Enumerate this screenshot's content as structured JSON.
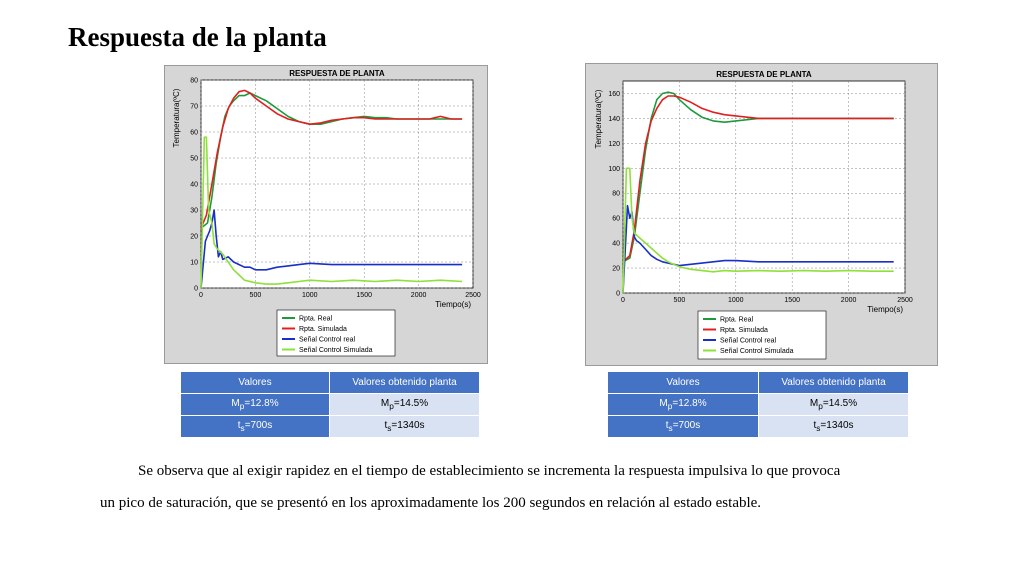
{
  "slide_title": "Respuesta de la planta",
  "chart_data": [
    {
      "type": "line",
      "title": "RESPUESTA DE PLANTA",
      "xlabel": "Tiempo(s)",
      "ylabel": "Temperatura(ºC)",
      "xlim": [
        0,
        2500
      ],
      "ylim": [
        0,
        80
      ],
      "xticks": [
        "0",
        "500",
        "1000",
        "1500",
        "2000",
        "2500"
      ],
      "yticks": [
        "0",
        "10",
        "20",
        "30",
        "40",
        "50",
        "60",
        "70",
        "80"
      ],
      "grid": true,
      "legend": "bottom-left",
      "series": [
        {
          "name": "Rpta. Real",
          "color": "#1e9a3c",
          "x": [
            0,
            60,
            100,
            140,
            180,
            220,
            260,
            300,
            350,
            400,
            450,
            500,
            600,
            700,
            800,
            900,
            1000,
            1100,
            1200,
            1300,
            1400,
            1500,
            1600,
            1700,
            1800,
            1900,
            2000,
            2100,
            2200,
            2300,
            2400
          ],
          "y": [
            23,
            25,
            35,
            48,
            58,
            66,
            70,
            72,
            74,
            74,
            75,
            74,
            72,
            69,
            66,
            64,
            63,
            63,
            64,
            65,
            65.5,
            66,
            65.5,
            65.5,
            65,
            65,
            65,
            65,
            65,
            65,
            65
          ]
        },
        {
          "name": "Rpta. Simulada",
          "color": "#e02020",
          "x": [
            0,
            50,
            100,
            150,
            200,
            250,
            300,
            350,
            400,
            450,
            500,
            600,
            700,
            800,
            900,
            1000,
            1100,
            1200,
            1300,
            1400,
            1500,
            1600,
            1700,
            1800,
            1900,
            2000,
            2100,
            2200,
            2300,
            2400
          ],
          "y": [
            23,
            28,
            40,
            52,
            62,
            69,
            73,
            75.5,
            76,
            75,
            73,
            70,
            67,
            65,
            64,
            63,
            63.5,
            64.5,
            65,
            65.5,
            65.5,
            65,
            65,
            65,
            65,
            65,
            65,
            66,
            65,
            65
          ]
        },
        {
          "name": "Señal Control real",
          "color": "#1a2fc8",
          "x": [
            0,
            40,
            60,
            80,
            100,
            120,
            140,
            160,
            180,
            200,
            250,
            300,
            350,
            400,
            450,
            500,
            600,
            700,
            800,
            900,
            1000,
            1200,
            1400,
            1600,
            1800,
            2000,
            2200,
            2400
          ],
          "y": [
            0,
            18,
            20,
            22,
            25,
            30,
            20,
            12,
            14,
            11,
            12,
            10,
            9,
            8,
            8,
            7,
            7,
            8,
            8.5,
            9,
            9.5,
            9,
            9,
            9,
            9,
            9,
            9,
            9
          ]
        },
        {
          "name": "Señal Control Simulada",
          "color": "#8ee03a",
          "x": [
            0,
            30,
            50,
            70,
            100,
            120,
            150,
            200,
            250,
            300,
            350,
            400,
            500,
            600,
            700,
            800,
            900,
            1000,
            1200,
            1400,
            1600,
            1800,
            2000,
            2200,
            2400
          ],
          "y": [
            0,
            58,
            58,
            30,
            25,
            17,
            15,
            13,
            10,
            7,
            5,
            3,
            2,
            1.5,
            1.5,
            2,
            2.5,
            3,
            2.5,
            3,
            2.5,
            3,
            2.5,
            3,
            2.5
          ]
        }
      ]
    },
    {
      "type": "line",
      "title": "RESPUESTA DE PLANTA",
      "xlabel": "Tiempo(s)",
      "ylabel": "Temperatura(ºC)",
      "xlim": [
        0,
        2500
      ],
      "ylim": [
        0,
        170
      ],
      "xticks": [
        "0",
        "500",
        "1000",
        "1500",
        "2000",
        "2500"
      ],
      "yticks": [
        "0",
        "20",
        "40",
        "60",
        "80",
        "100",
        "120",
        "140",
        "160"
      ],
      "grid": true,
      "legend": "bottom-left",
      "series": [
        {
          "name": "Rpta. Real",
          "color": "#1e9a3c",
          "x": [
            0,
            60,
            100,
            150,
            200,
            250,
            300,
            350,
            400,
            450,
            500,
            600,
            700,
            800,
            900,
            1000,
            1100,
            1200,
            1300,
            1400,
            1500,
            1600,
            1700,
            1800,
            1900,
            2000,
            2100,
            2200,
            2300,
            2400
          ],
          "y": [
            25,
            28,
            45,
            80,
            115,
            140,
            155,
            160,
            161,
            160,
            155,
            147,
            141,
            138,
            137,
            138,
            139,
            140,
            140,
            140,
            140,
            140,
            140,
            140,
            140,
            140,
            140,
            140,
            140,
            140
          ]
        },
        {
          "name": "Rpta. Simulada",
          "color": "#e02020",
          "x": [
            0,
            60,
            100,
            150,
            200,
            250,
            300,
            350,
            400,
            450,
            500,
            600,
            700,
            800,
            900,
            1000,
            1100,
            1200,
            1300,
            1400,
            1500,
            1600,
            1700,
            1800,
            1900,
            2000,
            2100,
            2200,
            2300,
            2400
          ],
          "y": [
            25,
            30,
            50,
            90,
            120,
            138,
            148,
            155,
            158,
            158,
            157,
            153,
            148,
            145,
            143,
            142,
            141,
            140,
            140,
            140,
            140,
            140,
            140,
            140,
            140,
            140,
            140,
            140,
            140,
            140
          ]
        },
        {
          "name": "Señal Control real",
          "color": "#1a2fc8",
          "x": [
            0,
            40,
            60,
            80,
            100,
            120,
            150,
            200,
            250,
            300,
            350,
            400,
            450,
            500,
            600,
            700,
            800,
            900,
            1000,
            1200,
            1400,
            1600,
            1800,
            2000,
            2200,
            2400
          ],
          "y": [
            0,
            70,
            60,
            65,
            45,
            42,
            40,
            35,
            30,
            27,
            25,
            24,
            23,
            22,
            23,
            24,
            25,
            26,
            26,
            25,
            25,
            25,
            25,
            25,
            25,
            25
          ]
        },
        {
          "name": "Señal Control Simulada",
          "color": "#8ee03a",
          "x": [
            0,
            30,
            60,
            80,
            100,
            150,
            200,
            250,
            300,
            350,
            400,
            500,
            600,
            700,
            800,
            900,
            1000,
            1200,
            1400,
            1600,
            1800,
            2000,
            2200,
            2400
          ],
          "y": [
            0,
            100,
            100,
            60,
            48,
            44,
            40,
            36,
            32,
            28,
            25,
            21,
            19,
            18,
            17,
            18,
            17.5,
            18,
            17.5,
            18,
            17.5,
            18,
            17.5,
            17.5
          ]
        }
      ]
    }
  ],
  "tables": [
    {
      "header": [
        "Valores",
        "Valores obtenido planta"
      ],
      "rows": [
        {
          "a_main": "M",
          "a_sub": "p",
          "a_rest": "=12.8%",
          "b_main": "M",
          "b_sub": "p",
          "b_rest": "=14.5%"
        },
        {
          "a_main": "t",
          "a_sub": "s",
          "a_rest": "=700s",
          "b_main": "t",
          "b_sub": "s",
          "b_rest": "=1340s"
        }
      ]
    },
    {
      "header": [
        "Valores",
        "Valores obtenido planta"
      ],
      "rows": [
        {
          "a_main": "M",
          "a_sub": "p",
          "a_rest": "=12.8%",
          "b_main": "M",
          "b_sub": "p",
          "b_rest": "=14.5%"
        },
        {
          "a_main": "t",
          "a_sub": "s",
          "a_rest": "=700s",
          "b_main": "t",
          "b_sub": "s",
          "b_rest": "=1340s"
        }
      ]
    }
  ],
  "paragraph": {
    "line1": "Se observa que al exigir rapidez en el tiempo de establecimiento se incrementa la respuesta impulsiva lo que provoca",
    "line2": "un  pico de saturación, que se presentó en los aproximadamente los 200 segundos en relación al estado estable."
  }
}
